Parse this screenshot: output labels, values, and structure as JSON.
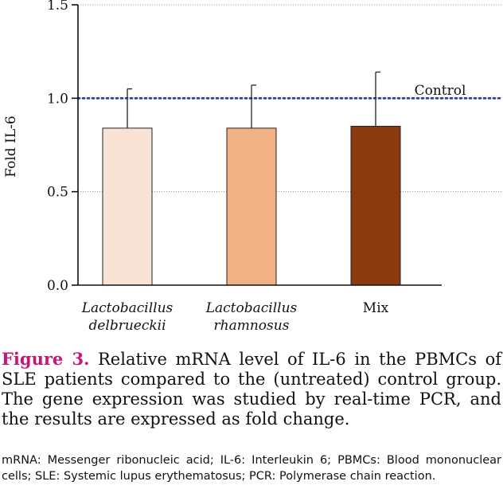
{
  "chart_data": {
    "type": "bar",
    "categories": [
      "Lactobacillus delbrueckii",
      "Lactobacillus rhamnosus",
      "Mix"
    ],
    "category_lines": [
      [
        "Lactobacillus",
        "delbrueckii"
      ],
      [
        "Lactobacillus",
        "rhamnosus"
      ],
      [
        "Mix"
      ]
    ],
    "category_italic": [
      true,
      true,
      false
    ],
    "values": [
      0.84,
      0.84,
      0.85
    ],
    "error_upper": [
      1.05,
      1.07,
      1.14
    ],
    "colors": [
      "#f9e3d6",
      "#f2b184",
      "#8b3a0e"
    ],
    "ylabel": "Fold IL-6",
    "ylim": [
      0,
      1.5
    ],
    "yticks": [
      0.0,
      0.5,
      1.0,
      1.5
    ],
    "ytick_labels": [
      "0.0",
      "0.5",
      "1.0",
      "1.5"
    ],
    "grid": true,
    "reference_line": {
      "value": 1.0,
      "label": "Control",
      "color": "#2f3e8f"
    }
  },
  "caption": {
    "label": "Figure 3.",
    "text": "Relative mRNA level of IL-6 in the PBMCs of SLE patients compared to the (untreated) control group. The gene expression was studied by real-time PCR, and the results are expressed as fold change."
  },
  "abbreviations": "mRNA: Messenger ribonucleic acid; IL-6: Interleukin 6; PBMCs: Blood mononuclear cells; SLE: Systemic lupus erythematosus; PCR: Polymerase chain reaction."
}
